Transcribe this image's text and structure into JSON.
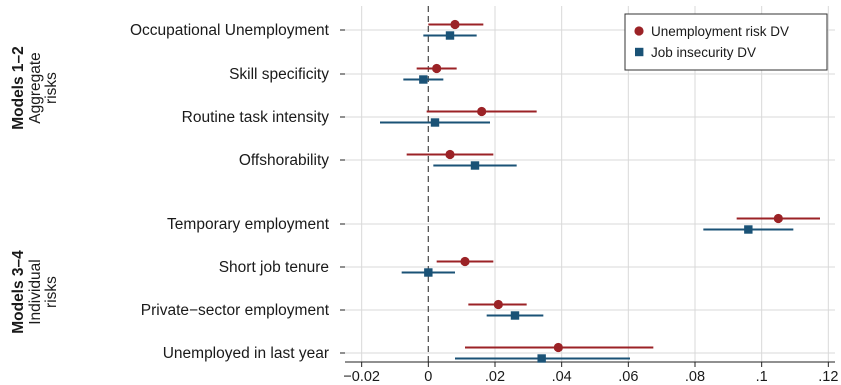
{
  "chart_data": {
    "type": "coefficient-plot",
    "title": "",
    "xlabel": "",
    "ylabel": "",
    "xlim": [
      -0.025,
      0.122
    ],
    "xticks": [
      -0.02,
      0,
      0.02,
      0.04,
      0.06,
      0.08,
      0.1,
      0.12
    ],
    "xtick_labels": [
      "−0.02",
      "0",
      ".02",
      ".04",
      ".06",
      ".08",
      ".1",
      ".12"
    ],
    "reference_line": 0,
    "grid": true,
    "legend_position": "top-right",
    "groups": [
      {
        "label_bold": "Models 1–2",
        "label_lines": [
          "Aggregate",
          "risks"
        ]
      },
      {
        "label_bold": "Models 3–4",
        "label_lines": [
          "Individual",
          "risks"
        ]
      }
    ],
    "categories": [
      "Occupational Unemployment",
      "Skill specificity",
      "Routine task intensity",
      "Offshorability",
      "Temporary employment",
      "Short job tenure",
      "Private−sector employment",
      "Unemployed in last year"
    ],
    "series": [
      {
        "name": "Unemployment risk DV",
        "color": "#9b2226",
        "marker": "circle",
        "estimates": [
          0.008,
          0.0025,
          0.016,
          0.0065,
          0.105,
          0.011,
          0.021,
          0.039
        ],
        "ci_low": [
          0.0,
          -0.0035,
          -0.0005,
          -0.0065,
          0.0925,
          0.0025,
          0.012,
          0.011
        ],
        "ci_high": [
          0.0165,
          0.0085,
          0.0325,
          0.0195,
          0.1175,
          0.0195,
          0.0295,
          0.0675
        ]
      },
      {
        "name": "Job insecurity DV",
        "color": "#1a5276",
        "marker": "square",
        "estimates": [
          0.0065,
          -0.0015,
          0.002,
          0.014,
          0.096,
          0.0,
          0.026,
          0.034
        ],
        "ci_low": [
          -0.0015,
          -0.0075,
          -0.0145,
          0.0015,
          0.0825,
          -0.008,
          0.0175,
          0.008
        ],
        "ci_high": [
          0.0145,
          0.0045,
          0.0185,
          0.0265,
          0.1095,
          0.008,
          0.0345,
          0.0605
        ]
      }
    ]
  }
}
